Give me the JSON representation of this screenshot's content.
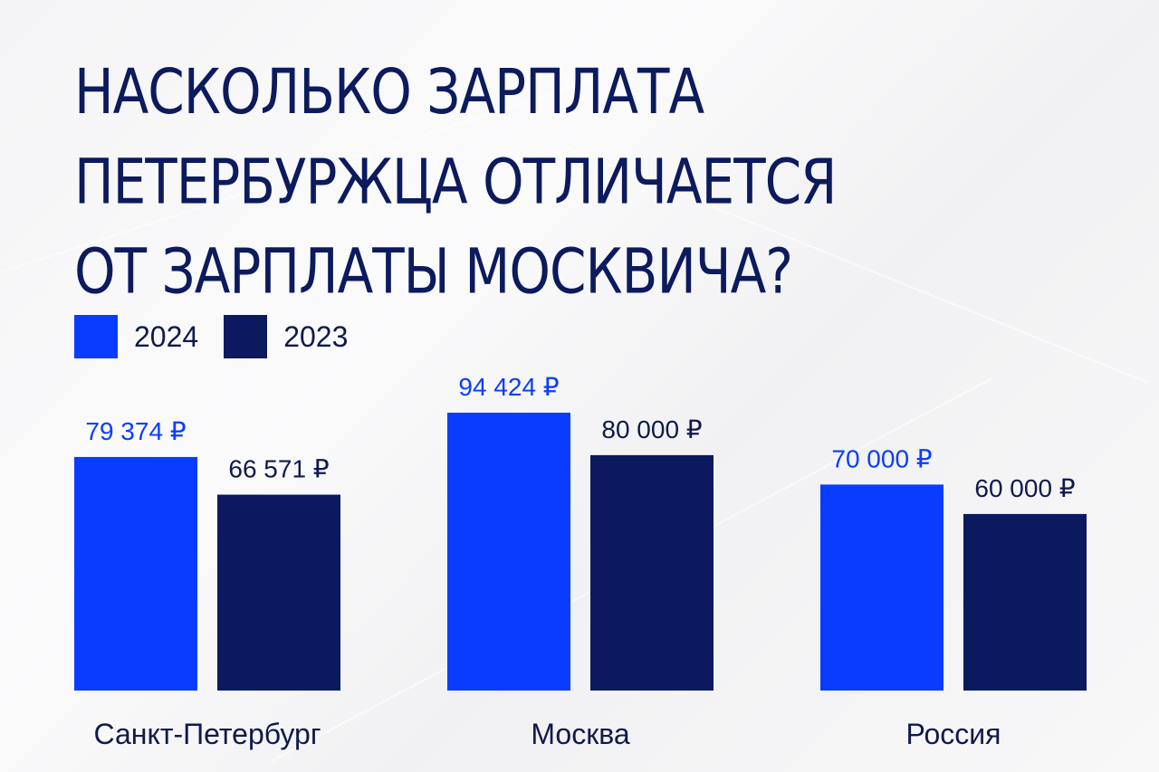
{
  "title_lines": [
    "НАСКОЛЬКО ЗАРПЛАТА",
    "ПЕТЕРБУРЖЦА ОТЛИЧАЕТСЯ",
    "ОТ ЗАРПЛАТЫ МОСКВИЧА?"
  ],
  "colors": {
    "series_2024": "#0a3cff",
    "series_2023": "#0b1a5e",
    "title": "#0c1a5e",
    "text_dark": "#101a4a"
  },
  "chart_data": {
    "type": "bar",
    "title": "НАСКОЛЬКО ЗАРПЛАТА ПЕТЕРБУРЖЦА ОТЛИЧАЕТСЯ ОТ ЗАРПЛАТЫ МОСКВИЧА?",
    "categories": [
      "Санкт-Петербург",
      "Москва",
      "Россия"
    ],
    "series": [
      {
        "name": "2024",
        "values": [
          79374,
          94424,
          70000
        ],
        "labels": [
          "79 374 ₽",
          "94 424 ₽",
          "70 000 ₽"
        ]
      },
      {
        "name": "2023",
        "values": [
          66571,
          80000,
          60000
        ],
        "labels": [
          "66 571 ₽",
          "80 000 ₽",
          "60 000 ₽"
        ]
      }
    ],
    "legend_position": "top-left",
    "grid": false,
    "xlabel": "",
    "ylabel": ""
  }
}
